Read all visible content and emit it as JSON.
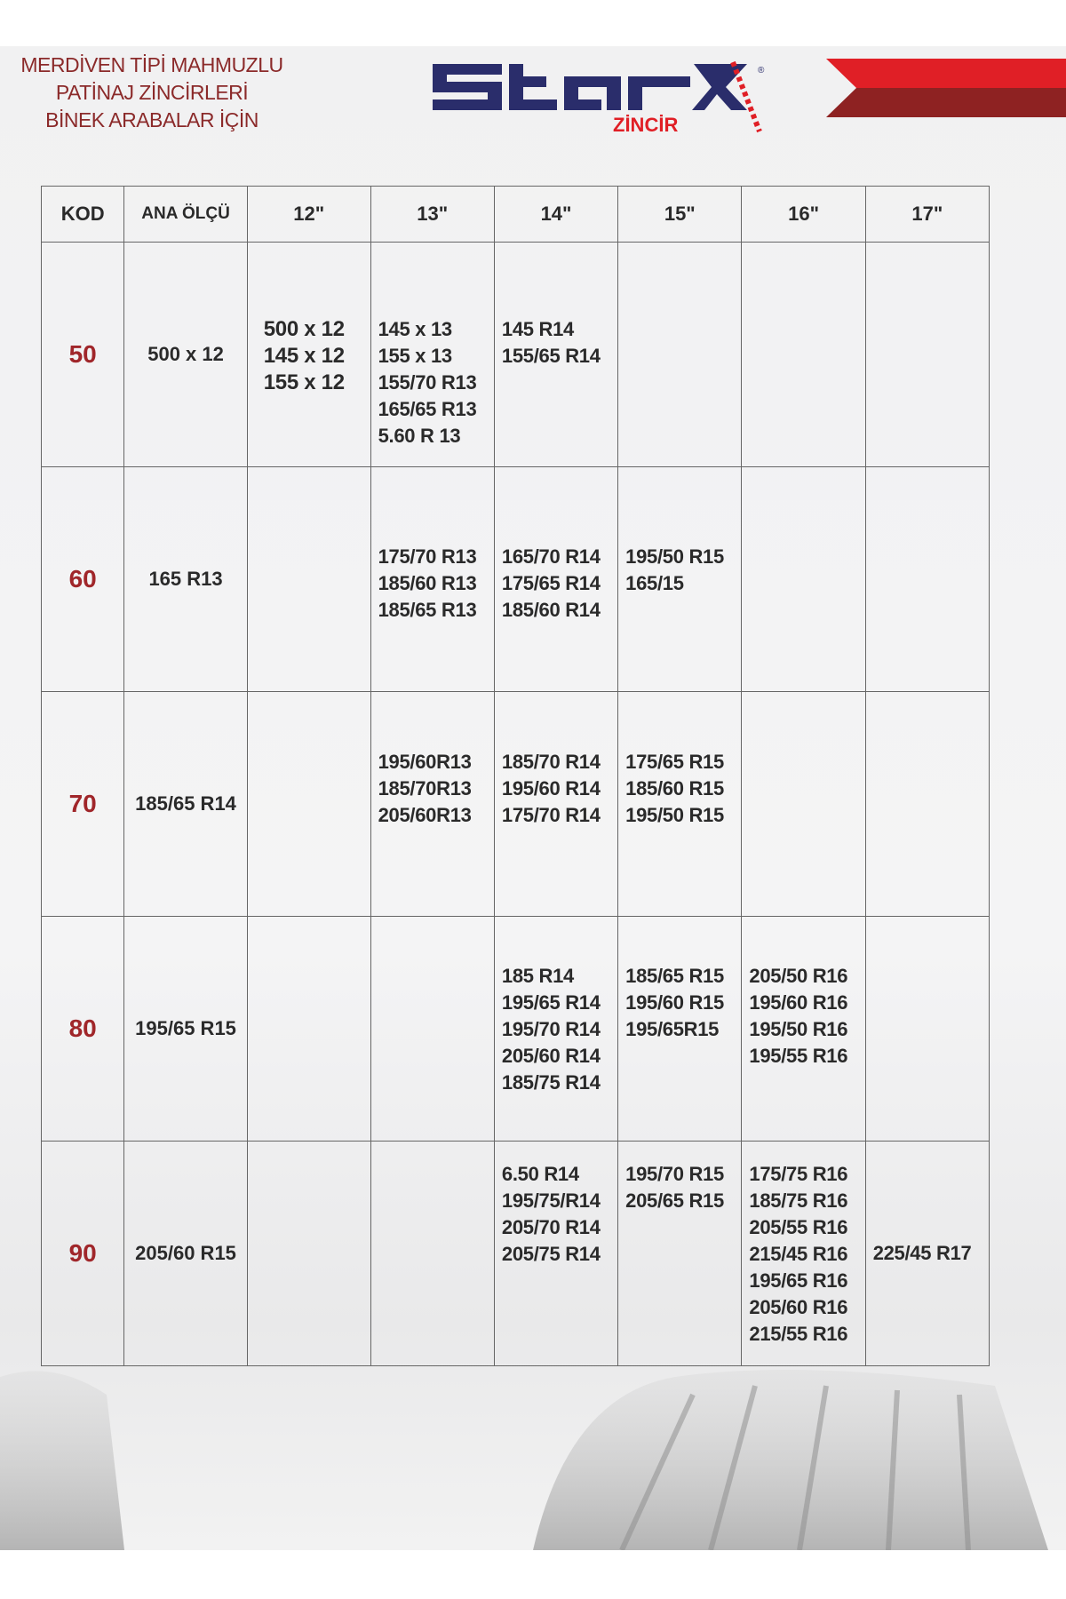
{
  "header": {
    "tagline": [
      "MERDİVEN TİPİ MAHMUZLU",
      "PATİNAJ ZİNCİRLERİ",
      "BİNEK ARABALAR İÇİN"
    ],
    "logo": {
      "brand": "STARX",
      "sub": "ZİNCİR",
      "mark": "®"
    },
    "colors": {
      "brand_navy": "#2a2d6b",
      "brand_red": "#e01f26",
      "dark_red": "#8e2222",
      "kod_red": "#a0262a"
    }
  },
  "table": {
    "headers": [
      "KOD",
      "ANA ÖLÇÜ",
      "12\"",
      "13\"",
      "14\"",
      "15\"",
      "16\"",
      "17\""
    ],
    "rows": [
      {
        "kod": "50",
        "ana": "500 x 12",
        "c12": [
          "500 x 12",
          "145 x 12",
          "155 x 12"
        ],
        "c13": [
          "145 x 13",
          "155 x 13",
          "155/70 R13",
          "165/65 R13",
          "5.60 R 13"
        ],
        "c14": [
          "145 R14",
          "155/65 R14"
        ],
        "c15": [],
        "c16": [],
        "c17": []
      },
      {
        "kod": "60",
        "ana": "165 R13",
        "c12": [],
        "c13": [
          "175/70 R13",
          "185/60 R13",
          "185/65 R13"
        ],
        "c14": [
          "165/70 R14",
          "175/65 R14",
          "185/60 R14"
        ],
        "c15": [
          "195/50 R15",
          "165/15"
        ],
        "c16": [],
        "c17": []
      },
      {
        "kod": "70",
        "ana": "185/65 R14",
        "c12": [],
        "c13": [
          "195/60R13",
          "185/70R13",
          "205/60R13"
        ],
        "c14": [
          "185/70 R14",
          "195/60 R14",
          "175/70 R14"
        ],
        "c15": [
          "175/65 R15",
          "185/60 R15",
          "195/50 R15"
        ],
        "c16": [],
        "c17": []
      },
      {
        "kod": "80",
        "ana": "195/65 R15",
        "c12": [],
        "c13": [],
        "c14": [
          "185 R14",
          "195/65 R14",
          "195/70 R14",
          "205/60 R14",
          "185/75 R14"
        ],
        "c15": [
          "185/65 R15",
          "195/60 R15",
          "195/65R15"
        ],
        "c16": [
          "205/50 R16",
          "195/60 R16",
          "195/50 R16",
          "195/55 R16"
        ],
        "c17": []
      },
      {
        "kod": "90",
        "ana": "205/60 R15",
        "c12": [],
        "c13": [],
        "c14": [
          "6.50 R14",
          "195/75/R14",
          "205/70 R14",
          "205/75 R14"
        ],
        "c15": [
          "195/70 R15",
          "205/65 R15"
        ],
        "c16": [
          "175/75 R16",
          "185/75 R16",
          "205/55 R16",
          "215/45 R16",
          "195/65 R16",
          "205/60 R16",
          "215/55 R16"
        ],
        "c17": [
          "225/45 R17"
        ]
      }
    ]
  }
}
